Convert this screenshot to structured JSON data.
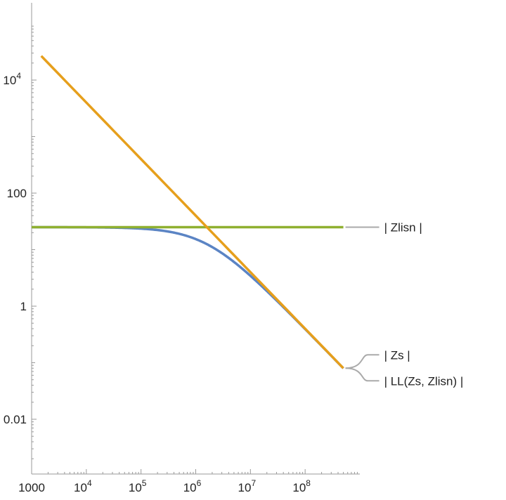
{
  "chart_data": {
    "type": "line",
    "title": "",
    "xlabel": "",
    "ylabel": "",
    "x_scale": "log",
    "y_scale": "log",
    "xlim": [
      1000,
      1000000000
    ],
    "ylim": [
      0.001,
      100000
    ],
    "grid": false,
    "x_ticks": [
      {
        "value": 1000,
        "base": "1000",
        "exp": ""
      },
      {
        "value": 10000,
        "base": "10",
        "exp": "4"
      },
      {
        "value": 100000,
        "base": "10",
        "exp": "5"
      },
      {
        "value": 1000000,
        "base": "10",
        "exp": "6"
      },
      {
        "value": 10000000,
        "base": "10",
        "exp": "7"
      },
      {
        "value": 100000000,
        "base": "10",
        "exp": "8"
      }
    ],
    "y_ticks": [
      {
        "value": 0.01,
        "base": "0.01",
        "exp": ""
      },
      {
        "value": 1,
        "base": "1",
        "exp": ""
      },
      {
        "value": 100,
        "base": "100",
        "exp": ""
      },
      {
        "value": 10000,
        "base": "10",
        "exp": "4"
      }
    ],
    "series": [
      {
        "name": "| Zlisn |",
        "color": "#8fb030",
        "formula": "constant",
        "value": 25,
        "x_range": [
          1000,
          500000000
        ]
      },
      {
        "name": "| Zs |",
        "color": "#e69f1c",
        "formula": "reciprocal",
        "value_at_1e6": 40,
        "x_range": [
          1500,
          500000000
        ]
      },
      {
        "name": "| LL(Zs, Zlisn) |",
        "color": "#5b84c4",
        "formula": "parallel",
        "x_range": [
          1000,
          500000000
        ]
      }
    ],
    "legend": "callout-right"
  }
}
